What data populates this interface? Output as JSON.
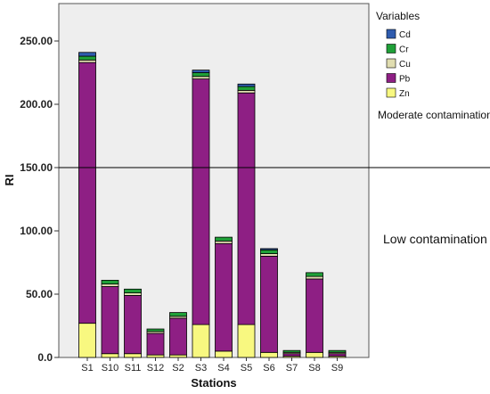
{
  "chart_data": {
    "type": "bar",
    "stacked": true,
    "categories": [
      "S1",
      "S10",
      "S11",
      "S12",
      "S2",
      "S3",
      "S4",
      "S5",
      "S6",
      "S7",
      "S8",
      "S9"
    ],
    "series": [
      {
        "name": "Zn",
        "color": "#f8f880",
        "values": [
          27,
          3,
          3,
          2,
          2,
          26,
          5,
          26,
          4,
          1,
          4,
          1
        ]
      },
      {
        "name": "Pb",
        "color": "#8e1f84",
        "values": [
          206,
          53,
          46,
          17,
          29,
          194,
          85,
          183,
          76,
          2,
          58,
          2
        ]
      },
      {
        "name": "Cu",
        "color": "#e0ddb0",
        "values": [
          2,
          2,
          2,
          1.5,
          1.5,
          2,
          2,
          2,
          2,
          1,
          2,
          1
        ]
      },
      {
        "name": "Cr",
        "color": "#1fa038",
        "values": [
          3,
          3,
          3,
          2,
          3,
          3,
          3,
          3,
          3,
          1.5,
          3,
          1.5
        ]
      },
      {
        "name": "Cd",
        "color": "#2f5cae",
        "values": [
          3,
          0,
          0,
          0,
          0,
          2,
          0,
          2,
          1,
          0,
          0,
          0
        ]
      }
    ],
    "xlabel": "Stations",
    "ylabel": "RI",
    "ylim": [
      0,
      265
    ],
    "yticks": [
      0,
      50,
      100,
      150,
      200,
      250
    ],
    "ytick_labels": [
      "0.0",
      "50.00",
      "100.00",
      "150.00",
      "200.00",
      "250.00"
    ],
    "reference_line": 150,
    "legend_title": "Variables",
    "legend_placement": "right",
    "legend_order": [
      "Cd",
      "Cr",
      "Cu",
      "Pb",
      "Zn"
    ],
    "annotations": [
      "Moderate contamination",
      "Low contamination"
    ],
    "plot_background": "#eeeeee",
    "grid": false
  }
}
